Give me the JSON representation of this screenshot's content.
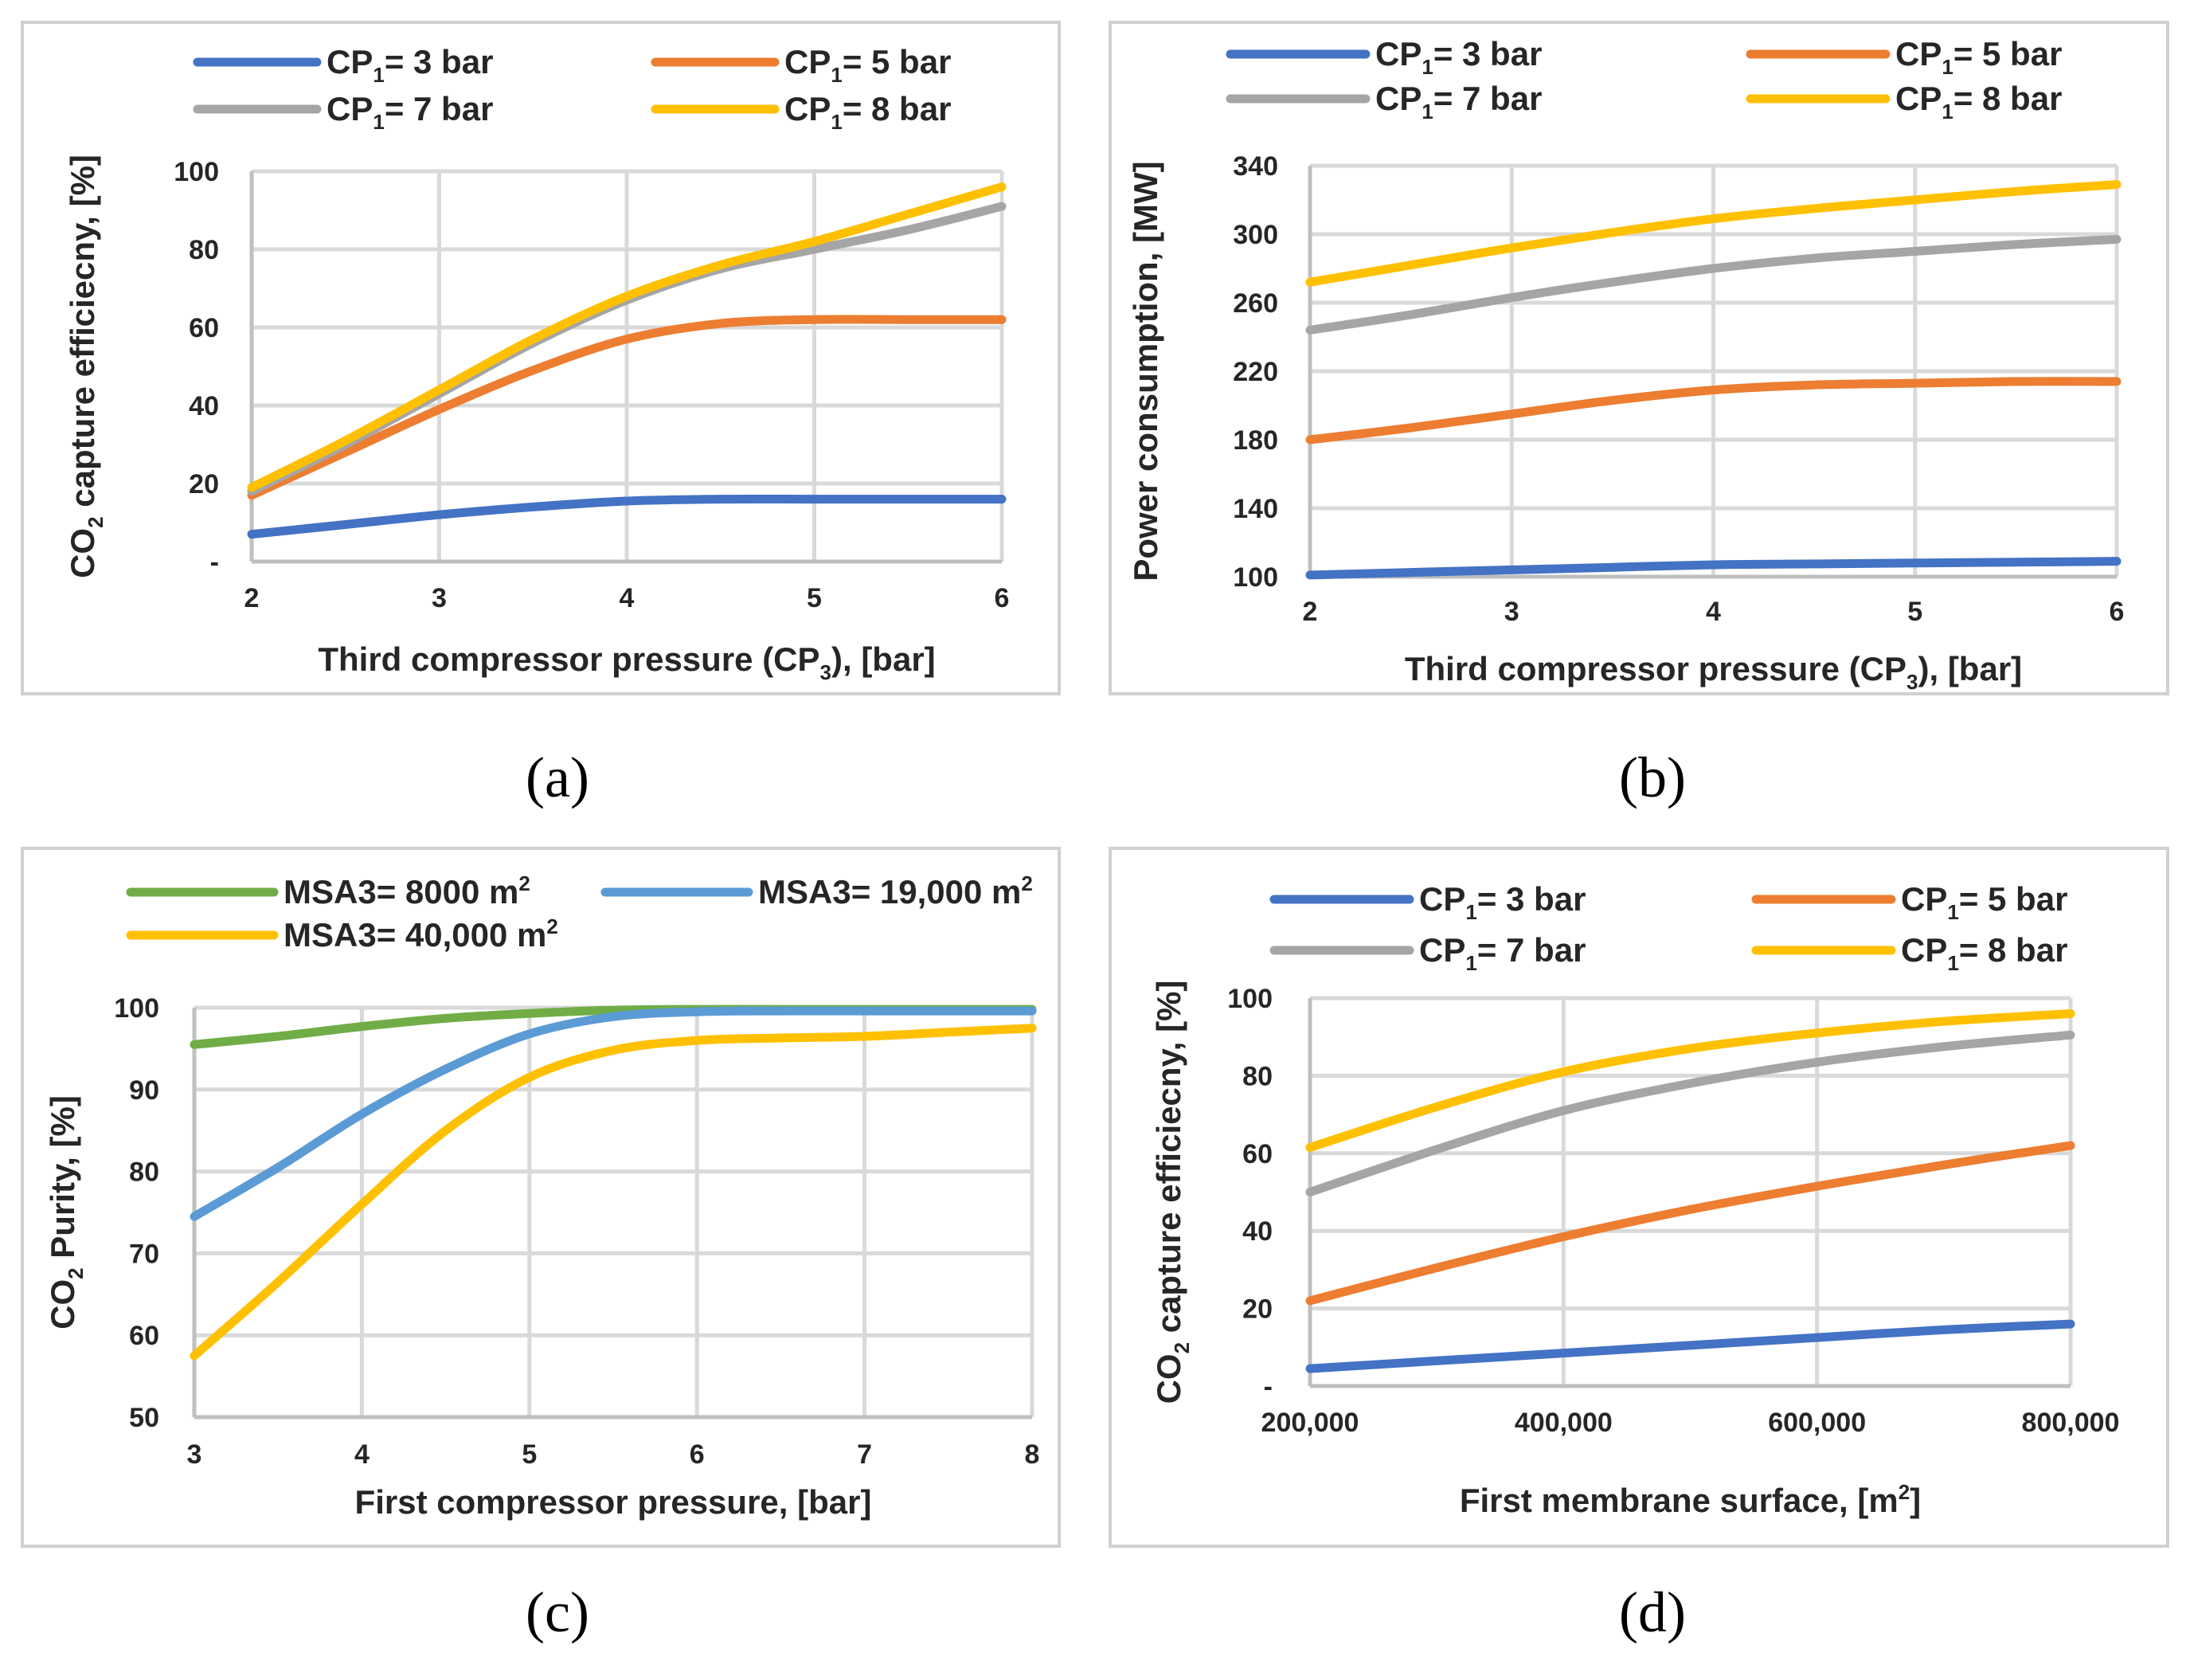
{
  "colors": {
    "blue": "#4472C4",
    "orange": "#ED7D31",
    "gray": "#A5A5A5",
    "yellow": "#FFC000",
    "green": "#70AD47",
    "lightblue": "#5B9BD5"
  },
  "chart_data": [
    {
      "id": "a",
      "caption": "(a)",
      "type": "line",
      "xlabel": {
        "pre": "Third compressor pressure (CP",
        "sub": "3",
        "post": "), [bar]"
      },
      "ylabel": {
        "pre": "CO",
        "sub": "2",
        "post": " capture efficiecny, [%]"
      },
      "xlim": [
        2,
        6
      ],
      "ylim": [
        0,
        100
      ],
      "xticks": [
        2,
        3,
        4,
        5,
        6
      ],
      "xtick_labels": [
        "2",
        "3",
        "4",
        "5",
        "6"
      ],
      "yticks": [
        0,
        20,
        40,
        60,
        80,
        100
      ],
      "ytick_labels": [
        "-",
        "20",
        "40",
        "60",
        "80",
        "100"
      ],
      "x": [
        2,
        2.5,
        3,
        3.5,
        4,
        4.5,
        5,
        5.5,
        6
      ],
      "series": [
        {
          "name": {
            "pre": "CP",
            "sub": "1",
            "post": "= 3 bar"
          },
          "color": "blue",
          "values": [
            7,
            9.5,
            12,
            14,
            15.5,
            16,
            16,
            16,
            16
          ]
        },
        {
          "name": {
            "pre": "CP",
            "sub": "1",
            "post": "= 5 bar"
          },
          "color": "orange",
          "values": [
            17,
            28,
            39,
            49,
            57,
            61,
            62,
            62,
            62
          ]
        },
        {
          "name": {
            "pre": "CP",
            "sub": "1",
            "post": "= 7 bar"
          },
          "color": "gray",
          "values": [
            18,
            30,
            43,
            56,
            67,
            75,
            80,
            85,
            91
          ]
        },
        {
          "name": {
            "pre": "CP",
            "sub": "1",
            "post": "= 8 bar"
          },
          "color": "yellow",
          "values": [
            19,
            31,
            44,
            57,
            68,
            76,
            82,
            89,
            96
          ]
        }
      ]
    },
    {
      "id": "b",
      "caption": "(b)",
      "type": "line",
      "xlabel": {
        "pre": "Third compressor pressure (CP",
        "sub": "3",
        "post": "), [bar]"
      },
      "ylabel": {
        "pre": "Power consumption,  [MW]",
        "sub": "",
        "post": ""
      },
      "xlim": [
        2,
        6
      ],
      "ylim": [
        100,
        340
      ],
      "xticks": [
        2,
        3,
        4,
        5,
        6
      ],
      "xtick_labels": [
        "2",
        "3",
        "4",
        "5",
        "6"
      ],
      "yticks": [
        100,
        140,
        180,
        220,
        260,
        300,
        340
      ],
      "ytick_labels": [
        "100",
        "140",
        "180",
        "220",
        "260",
        "300",
        "340"
      ],
      "x": [
        2,
        2.5,
        3,
        3.5,
        4,
        4.5,
        5,
        5.5,
        6
      ],
      "series": [
        {
          "name": {
            "pre": "CP",
            "sub": "1",
            "post": "= 3 bar"
          },
          "color": "blue",
          "values": [
            101,
            102.5,
            104,
            105.5,
            107,
            107.5,
            108,
            108.5,
            109
          ]
        },
        {
          "name": {
            "pre": "CP",
            "sub": "1",
            "post": "= 5 bar"
          },
          "color": "orange",
          "values": [
            180,
            187,
            195,
            203,
            209,
            212,
            213,
            214,
            214
          ]
        },
        {
          "name": {
            "pre": "CP",
            "sub": "1",
            "post": "= 7 bar"
          },
          "color": "gray",
          "values": [
            244,
            253,
            263,
            272,
            280,
            286,
            290,
            294,
            297
          ]
        },
        {
          "name": {
            "pre": "CP",
            "sub": "1",
            "post": "= 8 bar"
          },
          "color": "yellow",
          "values": [
            272,
            282,
            292,
            301,
            309,
            315,
            320,
            325,
            329
          ]
        }
      ]
    },
    {
      "id": "c",
      "caption": "(c)",
      "type": "line",
      "xlabel": {
        "pre": "First compressor pressure, [bar]",
        "sub": "",
        "post": ""
      },
      "ylabel": {
        "pre": "CO",
        "sub": "2",
        "post": " Purity, [%]"
      },
      "xlim": [
        3,
        8
      ],
      "ylim": [
        50,
        100
      ],
      "xticks": [
        3,
        4,
        5,
        6,
        7,
        8
      ],
      "xtick_labels": [
        "3",
        "4",
        "5",
        "6",
        "7",
        "8"
      ],
      "yticks": [
        50,
        60,
        70,
        80,
        90,
        100
      ],
      "ytick_labels": [
        "50",
        "60",
        "70",
        "80",
        "90",
        "100"
      ],
      "x": [
        3,
        3.5,
        4,
        4.5,
        5,
        5.5,
        6,
        6.5,
        7,
        7.5,
        8
      ],
      "series": [
        {
          "name": {
            "pre": "MSA3= 8000 m",
            "sup": "2",
            "post": ""
          },
          "color": "green",
          "values": [
            95.5,
            96.5,
            97.7,
            98.7,
            99.3,
            99.7,
            99.8,
            99.8,
            99.8,
            99.8,
            99.8
          ]
        },
        {
          "name": {
            "pre": "MSA3= 19,000 m",
            "sup": "2",
            "post": ""
          },
          "color": "lightblue",
          "values": [
            74.5,
            80.5,
            87,
            92.5,
            96.8,
            98.9,
            99.5,
            99.6,
            99.6,
            99.6,
            99.6
          ]
        },
        {
          "name": {
            "pre": "MSA3= 40,000 m",
            "sup": "2",
            "post": ""
          },
          "color": "yellow",
          "values": [
            57.5,
            66.5,
            76,
            85,
            91.5,
            94.8,
            96,
            96.3,
            96.5,
            97,
            97.5
          ]
        }
      ]
    },
    {
      "id": "d",
      "caption": "(d)",
      "type": "line",
      "xlabel": {
        "pre": "First membrane surface, [m",
        "sup": "2",
        "post": "]"
      },
      "ylabel": {
        "pre": "CO",
        "sub": "2",
        "post": " capture efficiecny, [%]"
      },
      "xlim": [
        200000,
        800000
      ],
      "ylim": [
        0,
        100
      ],
      "xticks": [
        200000,
        400000,
        600000,
        800000
      ],
      "xtick_labels": [
        "200,000",
        "400,000",
        "600,000",
        "800,000"
      ],
      "yticks": [
        0,
        20,
        40,
        60,
        80,
        100
      ],
      "ytick_labels": [
        "-",
        "20",
        "40",
        "60",
        "80",
        "100"
      ],
      "x": [
        200000,
        300000,
        400000,
        500000,
        600000,
        700000,
        800000
      ],
      "series": [
        {
          "name": {
            "pre": "CP",
            "sub": "1",
            "post": "= 3 bar"
          },
          "color": "blue",
          "values": [
            4.5,
            6.5,
            8.5,
            10.5,
            12.5,
            14.5,
            16
          ]
        },
        {
          "name": {
            "pre": "CP",
            "sub": "1",
            "post": "= 5 bar"
          },
          "color": "orange",
          "values": [
            22,
            30.5,
            38.5,
            45.5,
            51.5,
            57,
            62
          ]
        },
        {
          "name": {
            "pre": "CP",
            "sub": "1",
            "post": "= 7 bar"
          },
          "color": "gray",
          "values": [
            50,
            61,
            71,
            78,
            83.5,
            87.5,
            90.5
          ]
        },
        {
          "name": {
            "pre": "CP",
            "sub": "1",
            "post": "= 8 bar"
          },
          "color": "yellow",
          "values": [
            61.5,
            72,
            81,
            87,
            91,
            94,
            96
          ]
        }
      ]
    }
  ]
}
